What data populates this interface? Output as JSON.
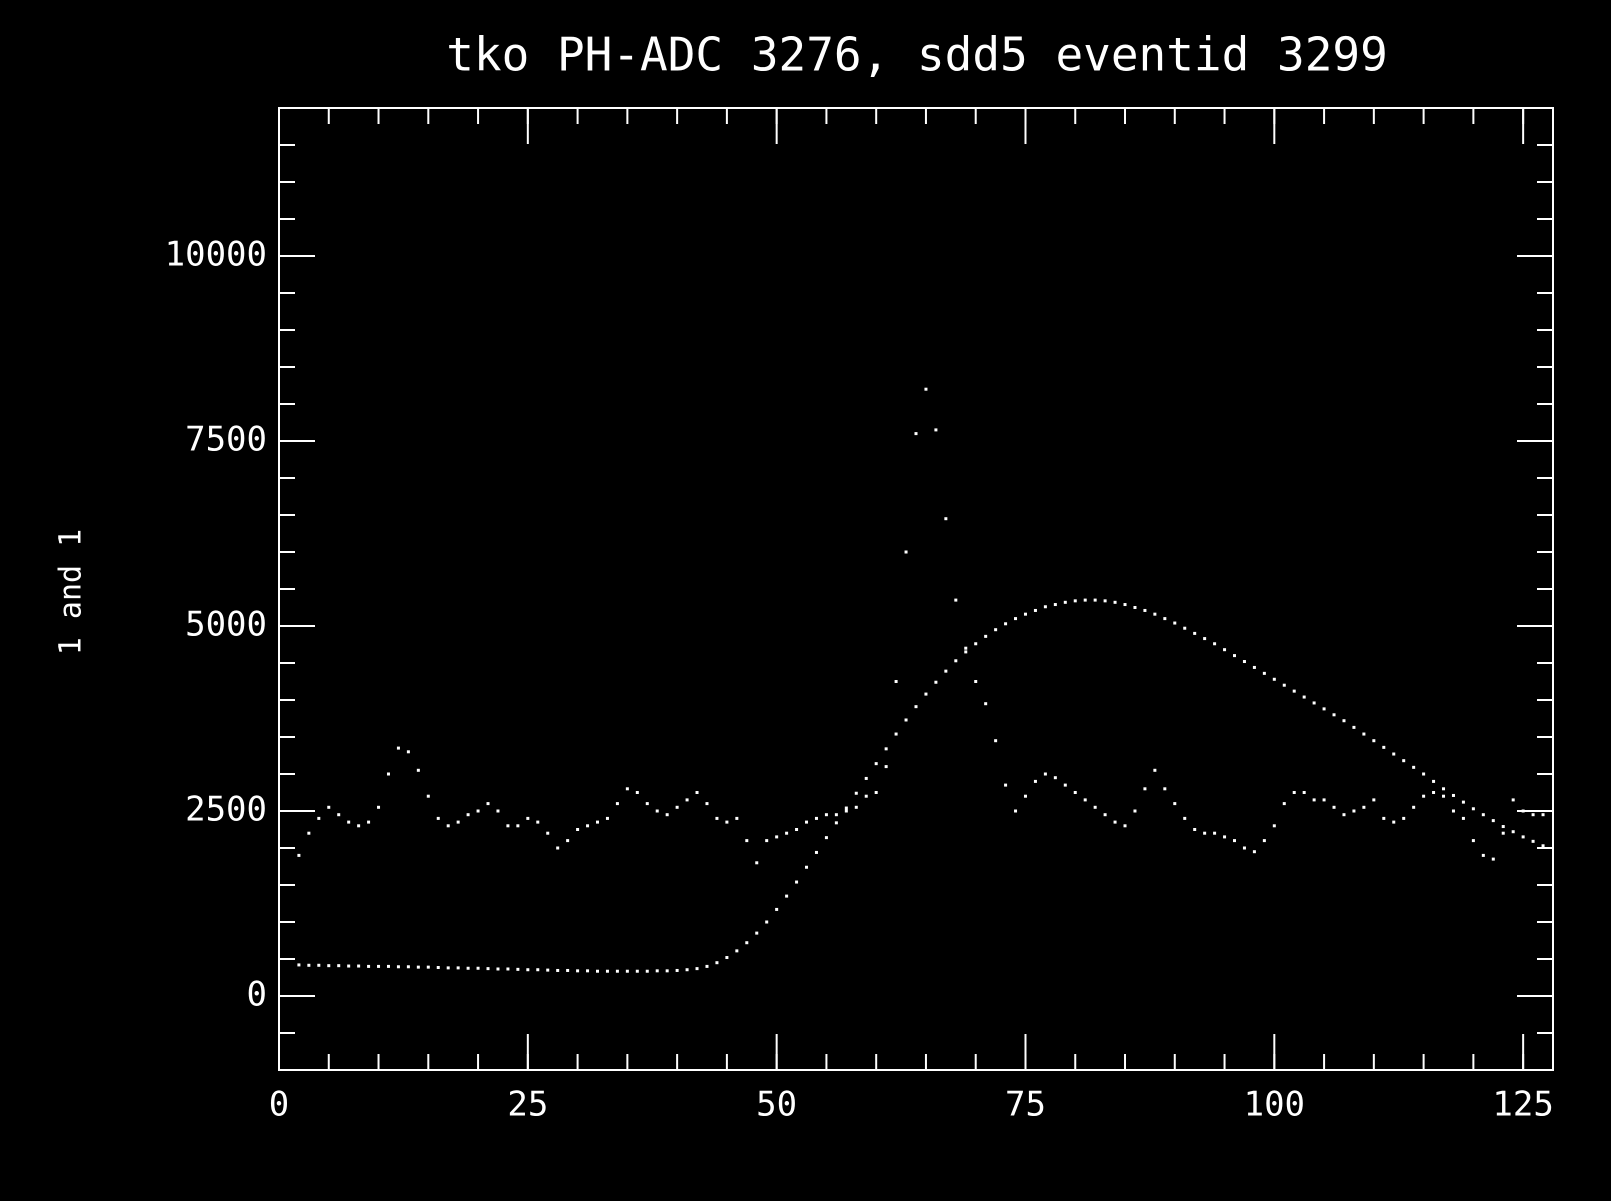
{
  "chart_data": {
    "type": "scatter",
    "title": "tko PH-ADC 3276, sdd5 eventid 3299",
    "ylabel": "1 and 1",
    "x": [
      2,
      3,
      4,
      5,
      6,
      7,
      8,
      9,
      10,
      11,
      12,
      13,
      14,
      15,
      16,
      17,
      18,
      19,
      20,
      21,
      22,
      23,
      24,
      25,
      26,
      27,
      28,
      29,
      30,
      31,
      32,
      33,
      34,
      35,
      36,
      37,
      38,
      39,
      40,
      41,
      42,
      43,
      44,
      45,
      46,
      47,
      48,
      49,
      50,
      51,
      52,
      53,
      54,
      55,
      56,
      57,
      58,
      59,
      60,
      61,
      62,
      63,
      64,
      65,
      66,
      67,
      68,
      69,
      70,
      71,
      72,
      73,
      74,
      75,
      76,
      77,
      78,
      79,
      80,
      81,
      82,
      83,
      84,
      85,
      86,
      87,
      88,
      89,
      90,
      91,
      92,
      93,
      94,
      95,
      96,
      97,
      98,
      99,
      100,
      101,
      102,
      103,
      104,
      105,
      106,
      107,
      108,
      109,
      110,
      111,
      112,
      113,
      114,
      115,
      116,
      117,
      118,
      119,
      120,
      121,
      122,
      123,
      124,
      125,
      126,
      127
    ],
    "series": [
      {
        "color": "#ffffff",
        "values": [
          420,
          415,
          415,
          410,
          410,
          405,
          405,
          400,
          400,
          400,
          395,
          395,
          390,
          390,
          385,
          380,
          380,
          375,
          375,
          370,
          365,
          365,
          360,
          355,
          355,
          350,
          345,
          345,
          340,
          340,
          335,
          335,
          335,
          335,
          335,
          335,
          340,
          340,
          345,
          355,
          370,
          400,
          450,
          520,
          610,
          720,
          850,
          1000,
          1170,
          1350,
          1540,
          1740,
          1940,
          2140,
          2340,
          2540,
          2740,
          2940,
          3140,
          3340,
          3540,
          3730,
          3910,
          4080,
          4240,
          4390,
          4530,
          4650,
          4760,
          4860,
          4950,
          5030,
          5100,
          5160,
          5210,
          5260,
          5290,
          5320,
          5340,
          5350,
          5350,
          5340,
          5320,
          5290,
          5250,
          5210,
          5160,
          5100,
          5040,
          4970,
          4900,
          4830,
          4760,
          4680,
          4600,
          4520,
          4440,
          4360,
          4280,
          4200,
          4120,
          4040,
          3960,
          3880,
          3800,
          3720,
          3630,
          3540,
          3450,
          3360,
          3270,
          3180,
          3090,
          3000,
          2900,
          2800,
          2710,
          2620,
          2530,
          2450,
          2370,
          2290,
          2220,
          2150,
          2090,
          2030
        ]
      },
      {
        "color": "#ffffff",
        "values": [
          1900,
          2200,
          2400,
          2550,
          2450,
          2350,
          2300,
          2350,
          2550,
          3000,
          3350,
          3300,
          3050,
          2700,
          2400,
          2300,
          2350,
          2450,
          2500,
          2600,
          2500,
          2300,
          2300,
          2400,
          2350,
          2200,
          2000,
          2100,
          2250,
          2300,
          2350,
          2400,
          2600,
          2800,
          2750,
          2600,
          2500,
          2450,
          2550,
          2650,
          2750,
          2600,
          2400,
          2350,
          2400,
          2100,
          1800,
          2100,
          2150,
          2200,
          2250,
          2350,
          2400,
          2450,
          2450,
          2500,
          2550,
          2700,
          2750,
          3100,
          4250,
          6000,
          7600,
          8200,
          7650,
          6450,
          5350,
          4700,
          4250,
          3950,
          3450,
          2850,
          2500,
          2700,
          2900,
          3000,
          2950,
          2850,
          2750,
          2650,
          2550,
          2450,
          2350,
          2300,
          2500,
          2800,
          3050,
          2800,
          2600,
          2400,
          2250,
          2200,
          2200,
          2150,
          2100,
          2000,
          1950,
          2100,
          2300,
          2600,
          2750,
          2750,
          2650,
          2650,
          2550,
          2450,
          2500,
          2550,
          2650,
          2400,
          2350,
          2400,
          2550,
          2700,
          2750,
          2700,
          2500,
          2400,
          2100,
          1900,
          1850,
          2200,
          2650,
          2500,
          2450,
          2450
        ]
      }
    ],
    "xlim": [
      0,
      128
    ],
    "ylim": [
      -1000,
      12000
    ],
    "xticks": [
      0,
      25,
      50,
      75,
      100,
      125
    ],
    "yticks": [
      0,
      2500,
      5000,
      7500,
      10000
    ],
    "minor_xtick_step": 5,
    "minor_ytick_step": 500,
    "background": "#000000",
    "axis_color": "#ffffff"
  }
}
